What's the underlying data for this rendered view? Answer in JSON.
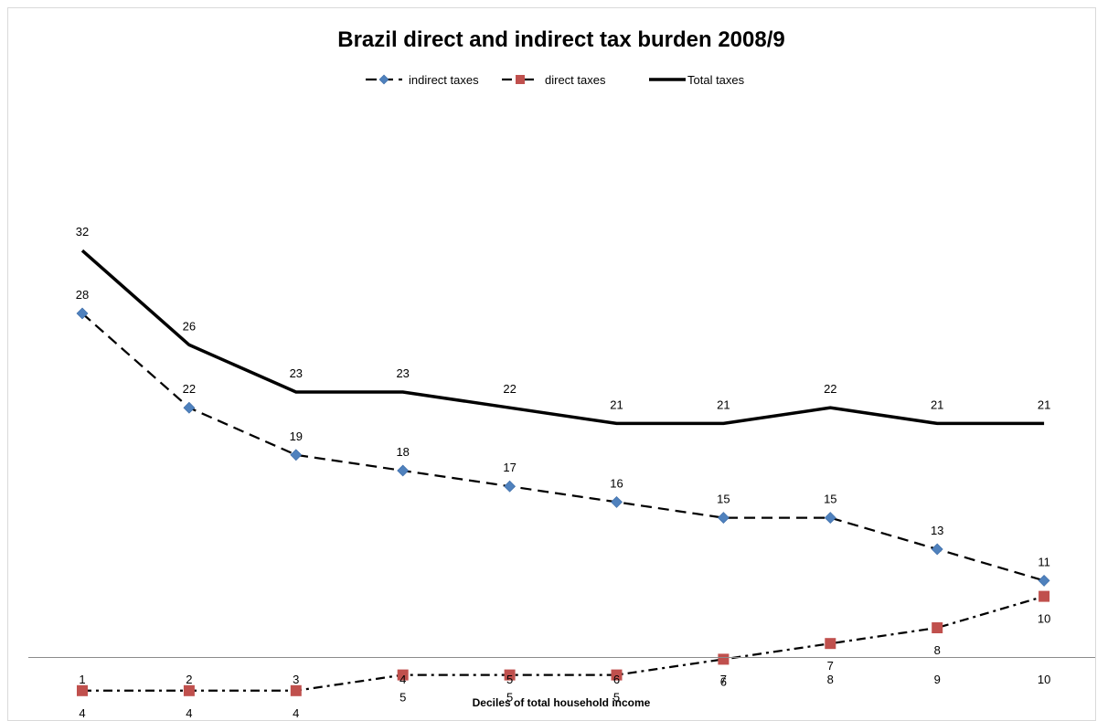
{
  "chart_data": {
    "type": "line",
    "title": "Brazil direct and indirect tax burden 2008/9",
    "xlabel": "Deciles of total household income",
    "ylabel": "",
    "x": [
      "1",
      "2",
      "3",
      "4",
      "5",
      "6",
      "7",
      "8",
      "9",
      "10"
    ],
    "ylim": [
      0,
      35
    ],
    "grid": false,
    "legend_position": "top",
    "series": [
      {
        "name": "indirect taxes",
        "values": [
          28,
          22,
          19,
          18,
          17,
          16,
          15,
          15,
          13,
          11
        ],
        "color": "#4f81bd",
        "line_style": "dashed",
        "marker": "diamond",
        "label_position": "above"
      },
      {
        "name": "direct taxes",
        "values": [
          4,
          4,
          4,
          5,
          5,
          5,
          6,
          7,
          8,
          10
        ],
        "color": "#c0504d",
        "line_style": "dash-dot",
        "marker": "square",
        "label_position": "below"
      },
      {
        "name": "Total taxes",
        "values": [
          32,
          26,
          23,
          23,
          22,
          21,
          21,
          22,
          21,
          21
        ],
        "color": "#000000",
        "line_style": "solid",
        "marker": "none",
        "label_position": "above"
      }
    ]
  }
}
